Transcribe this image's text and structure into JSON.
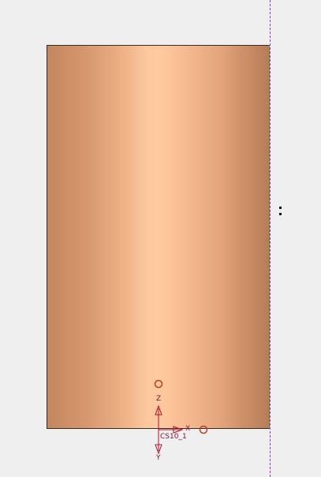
{
  "model": {
    "body_type": "cylinder",
    "colors": {
      "background": "#efefef",
      "body_base": "#e8a97f",
      "body_highlight": "#ffca9f",
      "datum_plane": "#9a2fd0",
      "csys": "#b0102a",
      "point_marker": "#b5401a"
    }
  },
  "csys": {
    "name": "CS10_1",
    "axis_x": "X",
    "axis_y": "Y",
    "axis_z": "Z"
  }
}
